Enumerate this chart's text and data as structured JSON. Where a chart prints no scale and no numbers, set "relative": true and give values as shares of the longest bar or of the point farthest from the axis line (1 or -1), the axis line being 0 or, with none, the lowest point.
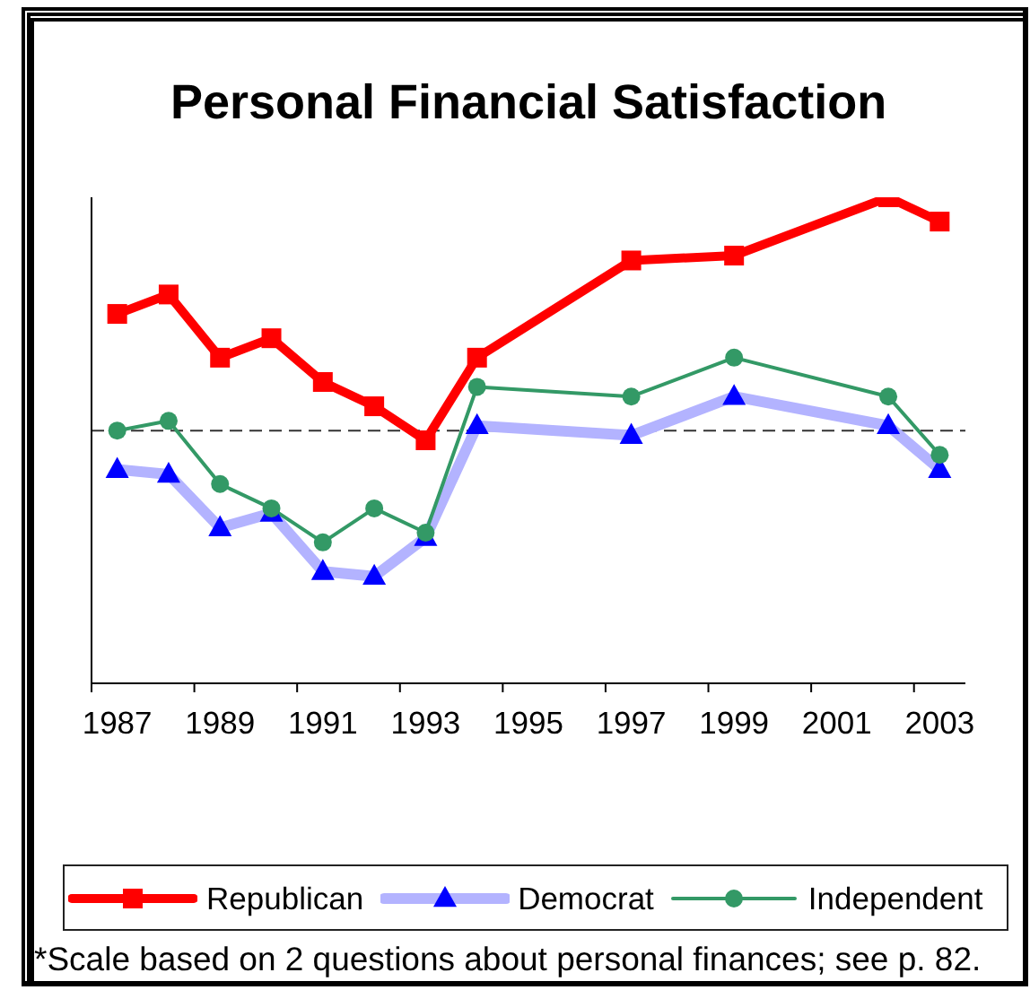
{
  "chart_data": {
    "type": "line",
    "title": "Personal Financial Satisfaction",
    "relative": true,
    "x": [
      1987,
      1988,
      1989,
      1990,
      1991,
      1992,
      1993,
      1994,
      1997,
      1999,
      2002,
      2003
    ],
    "xlim": [
      1986.5,
      2003.5
    ],
    "xticks": [
      {
        "value": 1986.5,
        "label": null
      },
      1987,
      {
        "value": 1988.5,
        "label": null
      },
      1989,
      {
        "value": 1990.5,
        "label": null
      },
      1991,
      {
        "value": 1992.5,
        "label": null
      },
      1993,
      {
        "value": 1994.5,
        "label": null
      },
      1995,
      {
        "value": 1996.5,
        "label": null
      },
      1997,
      {
        "value": 1998.5,
        "label": null
      },
      1999,
      {
        "value": 2000.5,
        "label": null
      },
      2001,
      {
        "value": 2002.5,
        "label": null
      },
      2003
    ],
    "series": [
      {
        "name": "Republican",
        "color": "#ff0000",
        "marker": "square",
        "values": [
          0.76,
          0.8,
          0.67,
          0.71,
          0.62,
          0.57,
          0.5,
          0.67,
          0.87,
          0.88,
          1.0,
          0.95
        ]
      },
      {
        "name": "Democrat",
        "color": "#b3b3ff",
        "colors": [
          "#0000ff",
          "#0000ff",
          "#0000ff",
          "#0000ff",
          "#0000ff",
          "#0000ff",
          "#0000ff",
          "#0000ff",
          "#0000ff",
          "#0000ff",
          "#0000ff",
          "#0000ff"
        ],
        "marker": "triangle",
        "values": [
          0.44,
          0.43,
          0.32,
          0.35,
          0.23,
          0.22,
          0.3,
          0.53,
          0.51,
          0.59,
          0.53,
          0.44
        ]
      },
      {
        "name": "Independent",
        "color": "#339966",
        "marker": "circle",
        "values": [
          0.52,
          0.54,
          0.41,
          0.36,
          0.29,
          0.36,
          0.31,
          0.61,
          0.59,
          0.67,
          0.59,
          0.47
        ]
      }
    ],
    "ref_lines": [
      {
        "axis": "y",
        "value": 0.52,
        "color": "#333333",
        "line_style": "dashed"
      }
    ],
    "legend": "bottom",
    "annotations": [
      "*Scale based on 2 questions about personal finances; see p. 82."
    ]
  }
}
